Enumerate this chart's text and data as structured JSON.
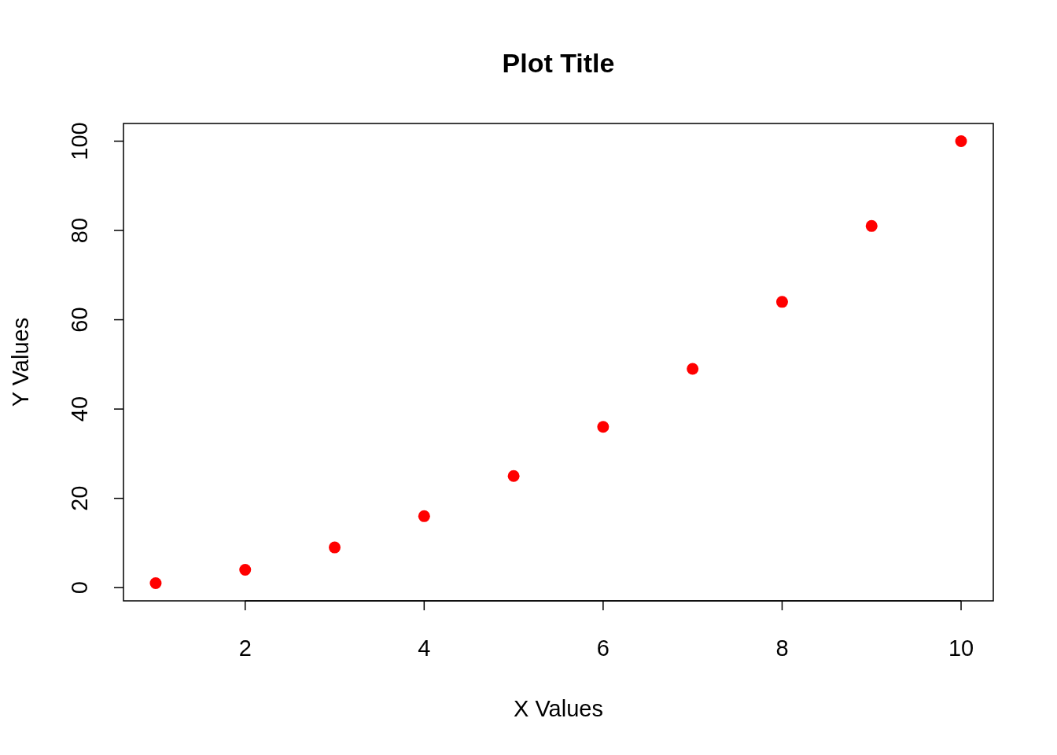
{
  "chart_data": {
    "type": "scatter",
    "title": "Plot Title",
    "xlabel": "X Values",
    "ylabel": "Y Values",
    "x": [
      1,
      2,
      3,
      4,
      5,
      6,
      7,
      8,
      9,
      10
    ],
    "series": [
      {
        "color": "#ff0000",
        "values": [
          1,
          4,
          9,
          16,
          25,
          36,
          49,
          64,
          81,
          100
        ]
      }
    ],
    "xlim": [
      0.64,
      10.36
    ],
    "ylim": [
      -2.96,
      103.96
    ],
    "xticks": [
      2,
      4,
      6,
      8,
      10
    ],
    "yticks": [
      0,
      20,
      40,
      60,
      80,
      100
    ],
    "marker": "circle",
    "grid": false
  }
}
